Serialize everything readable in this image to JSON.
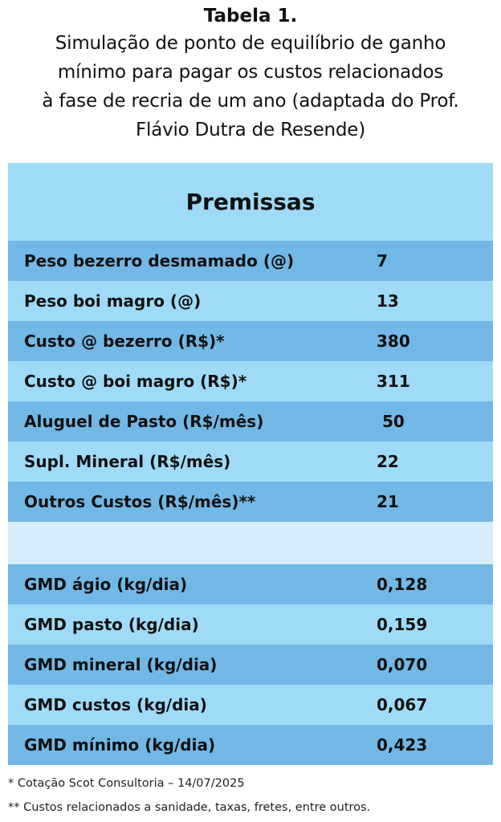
{
  "caption": {
    "title": "Tabela 1.",
    "lines": [
      "Simulação de ponto de equilíbrio de ganho",
      "mínimo para pagar os custos relacionados",
      "à fase de recria de um ano (adaptada do Prof.",
      "Flávio Dutra de Resende)"
    ]
  },
  "table": {
    "header": "Premissas",
    "rows": [
      {
        "label": "Peso bezerro desmamado (@)",
        "value": "7"
      },
      {
        "label": "Peso boi magro (@)",
        "value": "13"
      },
      {
        "label": "Custo @ bezerro (R$)*",
        "value": "380"
      },
      {
        "label": "Custo @ boi magro (R$)*",
        "value": "311"
      },
      {
        "label": "Aluguel de Pasto (R$/mês)",
        "value": " 50"
      },
      {
        "label": "Supl. Mineral (R$/mês)",
        "value": "22"
      },
      {
        "label": "Outros Custos (R$/mês)**",
        "value": "21"
      },
      {
        "label": "GMD ágio (kg/dia)",
        "value": "0,128"
      },
      {
        "label": "GMD pasto (kg/dia)",
        "value": "0,159"
      },
      {
        "label": "GMD mineral (kg/dia)",
        "value": "0,070"
      },
      {
        "label": "GMD custos (kg/dia)",
        "value": "0,067"
      },
      {
        "label": "GMD mínimo (kg/dia)",
        "value": "0,423"
      }
    ]
  },
  "footnotes": [
    "* Cotação Scot Consultoria – 14/07/2025",
    "** Custos relacionados a sanidade, taxas, fretes, entre outros."
  ],
  "colors": {
    "row_dark": "#72b8e6",
    "row_light": "#9fdbf7",
    "row_blank": "#d6eefb"
  }
}
